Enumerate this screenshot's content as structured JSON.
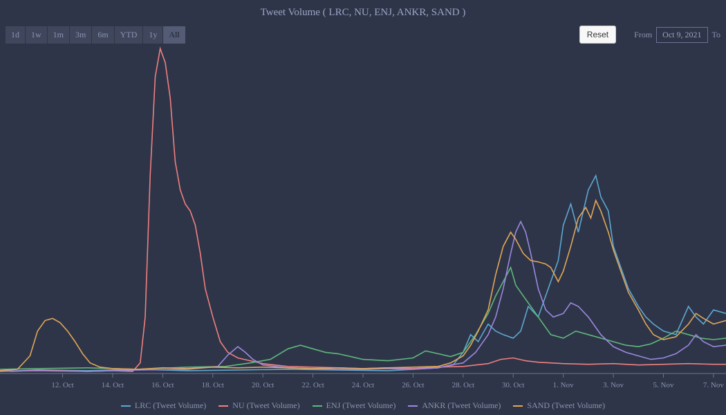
{
  "title": "Tweet Volume ( LRC, NU, ENJ, ANKR, SAND )",
  "range_buttons": [
    "1d",
    "1w",
    "1m",
    "3m",
    "6m",
    "YTD",
    "1y",
    "All"
  ],
  "active_range": "All",
  "reset_label": "Reset",
  "from_label": "From",
  "to_label": "To",
  "from_date": "Oct 9, 2021",
  "chart": {
    "type": "line",
    "background": "#2e3548",
    "x_ticks": [
      "12. Oct",
      "14. Oct",
      "16. Oct",
      "18. Oct",
      "20. Oct",
      "22. Oct",
      "24. Oct",
      "26. Oct",
      "28. Oct",
      "30. Oct",
      "1. Nov",
      "3. Nov",
      "5. Nov",
      "7. Nov"
    ],
    "x_tick_positions": [
      12,
      14,
      16,
      18,
      20,
      22,
      24,
      26,
      28,
      30,
      32,
      34,
      36,
      38
    ],
    "xlim": [
      9.5,
      38.5
    ],
    "ylim": [
      0,
      470
    ],
    "line_width": 1.6,
    "series": [
      {
        "name": "LRC (Tweet Volume)",
        "color": "#5fa8d3",
        "points": [
          [
            9.5,
            3
          ],
          [
            11,
            5
          ],
          [
            13,
            4
          ],
          [
            15,
            6
          ],
          [
            17,
            4
          ],
          [
            19,
            5
          ],
          [
            21,
            6
          ],
          [
            23,
            5
          ],
          [
            25,
            4
          ],
          [
            26,
            6
          ],
          [
            27,
            8
          ],
          [
            27.6,
            12
          ],
          [
            28,
            30
          ],
          [
            28.3,
            55
          ],
          [
            28.6,
            45
          ],
          [
            29,
            70
          ],
          [
            29.3,
            60
          ],
          [
            29.6,
            55
          ],
          [
            30,
            50
          ],
          [
            30.3,
            60
          ],
          [
            30.6,
            95
          ],
          [
            31,
            80
          ],
          [
            31.4,
            120
          ],
          [
            31.8,
            160
          ],
          [
            32,
            210
          ],
          [
            32.3,
            240
          ],
          [
            32.6,
            200
          ],
          [
            33,
            260
          ],
          [
            33.3,
            280
          ],
          [
            33.5,
            250
          ],
          [
            33.8,
            230
          ],
          [
            34,
            180
          ],
          [
            34.3,
            150
          ],
          [
            34.6,
            120
          ],
          [
            35,
            95
          ],
          [
            35.3,
            80
          ],
          [
            35.6,
            70
          ],
          [
            36,
            60
          ],
          [
            36.5,
            55
          ],
          [
            37,
            95
          ],
          [
            37.3,
            80
          ],
          [
            37.6,
            70
          ],
          [
            38,
            90
          ],
          [
            38.5,
            85
          ]
        ]
      },
      {
        "name": "NU (Tweet Volume)",
        "color": "#f08080",
        "points": [
          [
            9.5,
            4
          ],
          [
            10,
            3
          ],
          [
            11,
            5
          ],
          [
            12,
            4
          ],
          [
            13,
            3
          ],
          [
            14,
            4
          ],
          [
            14.8,
            3
          ],
          [
            15.1,
            15
          ],
          [
            15.3,
            80
          ],
          [
            15.5,
            280
          ],
          [
            15.7,
            420
          ],
          [
            15.9,
            460
          ],
          [
            16.1,
            440
          ],
          [
            16.3,
            390
          ],
          [
            16.5,
            300
          ],
          [
            16.7,
            260
          ],
          [
            16.9,
            240
          ],
          [
            17.1,
            230
          ],
          [
            17.3,
            210
          ],
          [
            17.5,
            170
          ],
          [
            17.7,
            120
          ],
          [
            18,
            80
          ],
          [
            18.3,
            45
          ],
          [
            18.6,
            30
          ],
          [
            19,
            22
          ],
          [
            19.5,
            18
          ],
          [
            20,
            14
          ],
          [
            21,
            10
          ],
          [
            22,
            9
          ],
          [
            23,
            8
          ],
          [
            24,
            7
          ],
          [
            25,
            8
          ],
          [
            26,
            7
          ],
          [
            27,
            9
          ],
          [
            28,
            10
          ],
          [
            29,
            14
          ],
          [
            29.5,
            20
          ],
          [
            30,
            22
          ],
          [
            30.5,
            18
          ],
          [
            31,
            16
          ],
          [
            32,
            14
          ],
          [
            33,
            13
          ],
          [
            34,
            14
          ],
          [
            35,
            12
          ],
          [
            36,
            13
          ],
          [
            37,
            14
          ],
          [
            38,
            13
          ],
          [
            38.5,
            13
          ]
        ]
      },
      {
        "name": "ENJ (Tweet Volume)",
        "color": "#5fb97d",
        "points": [
          [
            9.5,
            6
          ],
          [
            11,
            7
          ],
          [
            13,
            8
          ],
          [
            15,
            6
          ],
          [
            17,
            9
          ],
          [
            18.5,
            10
          ],
          [
            19.5,
            15
          ],
          [
            20.3,
            20
          ],
          [
            21,
            35
          ],
          [
            21.5,
            40
          ],
          [
            22,
            35
          ],
          [
            22.5,
            30
          ],
          [
            23,
            28
          ],
          [
            24,
            20
          ],
          [
            25,
            18
          ],
          [
            26,
            22
          ],
          [
            26.5,
            32
          ],
          [
            27,
            28
          ],
          [
            27.5,
            24
          ],
          [
            28,
            30
          ],
          [
            28.5,
            55
          ],
          [
            29,
            85
          ],
          [
            29.3,
            110
          ],
          [
            29.6,
            130
          ],
          [
            29.9,
            150
          ],
          [
            30.1,
            125
          ],
          [
            30.4,
            110
          ],
          [
            30.7,
            95
          ],
          [
            31,
            80
          ],
          [
            31.5,
            55
          ],
          [
            32,
            50
          ],
          [
            32.5,
            60
          ],
          [
            33,
            55
          ],
          [
            33.5,
            50
          ],
          [
            34,
            45
          ],
          [
            34.5,
            40
          ],
          [
            35,
            38
          ],
          [
            35.5,
            42
          ],
          [
            36,
            50
          ],
          [
            36.5,
            60
          ],
          [
            37,
            55
          ],
          [
            37.5,
            50
          ],
          [
            38,
            48
          ],
          [
            38.5,
            50
          ]
        ]
      },
      {
        "name": "ANKR (Tweet Volume)",
        "color": "#9d88e0",
        "points": [
          [
            9.5,
            3
          ],
          [
            11,
            4
          ],
          [
            13,
            3
          ],
          [
            15,
            5
          ],
          [
            17,
            6
          ],
          [
            18.2,
            10
          ],
          [
            18.6,
            26
          ],
          [
            19,
            38
          ],
          [
            19.3,
            30
          ],
          [
            19.6,
            20
          ],
          [
            20,
            12
          ],
          [
            21,
            8
          ],
          [
            22,
            7
          ],
          [
            23,
            6
          ],
          [
            24,
            6
          ],
          [
            25,
            7
          ],
          [
            26,
            6
          ],
          [
            27,
            8
          ],
          [
            27.5,
            12
          ],
          [
            28,
            15
          ],
          [
            28.5,
            30
          ],
          [
            29,
            55
          ],
          [
            29.3,
            80
          ],
          [
            29.6,
            120
          ],
          [
            29.9,
            170
          ],
          [
            30.1,
            200
          ],
          [
            30.3,
            215
          ],
          [
            30.5,
            200
          ],
          [
            30.7,
            170
          ],
          [
            31,
            120
          ],
          [
            31.3,
            90
          ],
          [
            31.6,
            80
          ],
          [
            32,
            85
          ],
          [
            32.3,
            100
          ],
          [
            32.6,
            95
          ],
          [
            33,
            80
          ],
          [
            33.5,
            55
          ],
          [
            34,
            38
          ],
          [
            34.5,
            30
          ],
          [
            35,
            25
          ],
          [
            35.5,
            20
          ],
          [
            36,
            22
          ],
          [
            36.5,
            28
          ],
          [
            37,
            40
          ],
          [
            37.3,
            55
          ],
          [
            37.6,
            45
          ],
          [
            38,
            38
          ],
          [
            38.5,
            40
          ]
        ]
      },
      {
        "name": "SAND (Tweet Volume)",
        "color": "#e3a857",
        "points": [
          [
            9.5,
            4
          ],
          [
            10.2,
            6
          ],
          [
            10.7,
            25
          ],
          [
            11,
            60
          ],
          [
            11.3,
            75
          ],
          [
            11.6,
            78
          ],
          [
            11.9,
            72
          ],
          [
            12.2,
            60
          ],
          [
            12.5,
            45
          ],
          [
            12.8,
            28
          ],
          [
            13.1,
            15
          ],
          [
            13.5,
            9
          ],
          [
            14,
            7
          ],
          [
            15,
            6
          ],
          [
            16,
            8
          ],
          [
            17,
            7
          ],
          [
            18,
            9
          ],
          [
            19,
            8
          ],
          [
            20,
            9
          ],
          [
            21,
            8
          ],
          [
            22,
            7
          ],
          [
            23,
            8
          ],
          [
            24,
            7
          ],
          [
            25,
            8
          ],
          [
            26,
            9
          ],
          [
            27,
            10
          ],
          [
            27.5,
            15
          ],
          [
            28,
            25
          ],
          [
            28.3,
            40
          ],
          [
            28.6,
            60
          ],
          [
            29,
            90
          ],
          [
            29.3,
            140
          ],
          [
            29.6,
            180
          ],
          [
            29.9,
            200
          ],
          [
            30.1,
            190
          ],
          [
            30.4,
            170
          ],
          [
            30.7,
            160
          ],
          [
            31,
            158
          ],
          [
            31.3,
            155
          ],
          [
            31.5,
            150
          ],
          [
            31.8,
            130
          ],
          [
            32,
            145
          ],
          [
            32.3,
            180
          ],
          [
            32.6,
            220
          ],
          [
            32.9,
            235
          ],
          [
            33.1,
            220
          ],
          [
            33.3,
            245
          ],
          [
            33.5,
            230
          ],
          [
            33.8,
            200
          ],
          [
            34,
            175
          ],
          [
            34.3,
            145
          ],
          [
            34.6,
            115
          ],
          [
            35,
            90
          ],
          [
            35.3,
            70
          ],
          [
            35.6,
            55
          ],
          [
            36,
            48
          ],
          [
            36.5,
            52
          ],
          [
            37,
            70
          ],
          [
            37.3,
            85
          ],
          [
            37.6,
            78
          ],
          [
            38,
            70
          ],
          [
            38.5,
            75
          ]
        ]
      }
    ]
  },
  "legend_items": [
    {
      "label": "LRC (Tweet Volume)",
      "color": "#5fa8d3"
    },
    {
      "label": "NU (Tweet Volume)",
      "color": "#f08080"
    },
    {
      "label": "ENJ (Tweet Volume)",
      "color": "#5fb97d"
    },
    {
      "label": "ANKR (Tweet Volume)",
      "color": "#9d88e0"
    },
    {
      "label": "SAND (Tweet Volume)",
      "color": "#e3a857"
    }
  ]
}
